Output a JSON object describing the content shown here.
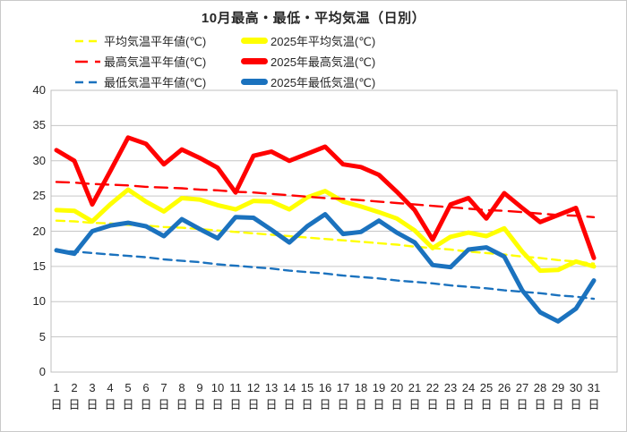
{
  "chart_data": {
    "type": "line",
    "title": "10月最高・最低・平均気温（日別）",
    "x_categories": [
      "1",
      "2",
      "3",
      "4",
      "5",
      "6",
      "7",
      "8",
      "9",
      "10",
      "11",
      "12",
      "13",
      "14",
      "15",
      "16",
      "17",
      "18",
      "19",
      "20",
      "21",
      "22",
      "23",
      "24",
      "25",
      "26",
      "27",
      "28",
      "29",
      "30",
      "31"
    ],
    "x_suffix": "日",
    "ylim": [
      0,
      40
    ],
    "y_ticks": [
      0,
      5,
      10,
      15,
      20,
      25,
      30,
      35,
      40
    ],
    "grid": true,
    "legend_position": "top",
    "colors": {
      "average": "#ffff00",
      "max": "#ff0000",
      "min": "#1b72be",
      "gridline": "#c6c6c6",
      "plot_border": "#bfbfbf",
      "text": "#262626"
    },
    "series": [
      {
        "name": "平均気温平年値(℃)",
        "color": "#ffff00",
        "dash": "short",
        "line": "dashed",
        "values": [
          21.5,
          21.4,
          21.2,
          21.1,
          20.9,
          20.8,
          20.6,
          20.5,
          20.3,
          20.1,
          19.9,
          19.7,
          19.5,
          19.3,
          19.1,
          18.9,
          18.7,
          18.5,
          18.3,
          18.1,
          17.8,
          17.6,
          17.4,
          17.1,
          16.9,
          16.7,
          16.4,
          16.2,
          15.9,
          15.7,
          15.4
        ]
      },
      {
        "name": "2025年平均気温(℃)",
        "color": "#ffff00",
        "dash": "none",
        "line": "solid",
        "values": [
          23.0,
          22.9,
          21.4,
          23.8,
          25.9,
          24.2,
          22.8,
          24.7,
          24.5,
          23.7,
          23.1,
          24.3,
          24.2,
          23.1,
          24.8,
          25.7,
          24.2,
          23.5,
          22.7,
          21.8,
          20.1,
          17.6,
          19.2,
          19.8,
          19.3,
          20.4,
          17.1,
          14.4,
          14.5,
          15.7,
          15.0
        ]
      },
      {
        "name": "最高気温平年値(℃)",
        "color": "#ff0000",
        "dash": "long",
        "line": "dashed",
        "values": [
          27.0,
          26.9,
          26.7,
          26.6,
          26.5,
          26.3,
          26.2,
          26.1,
          25.9,
          25.8,
          25.6,
          25.5,
          25.3,
          25.1,
          24.9,
          24.7,
          24.6,
          24.4,
          24.2,
          24.0,
          23.8,
          23.6,
          23.4,
          23.2,
          23.0,
          22.9,
          22.7,
          22.5,
          22.3,
          22.2,
          22.0
        ]
      },
      {
        "name": "2025年最高気温(℃)",
        "color": "#ff0000",
        "dash": "none",
        "line": "solid",
        "values": [
          31.5,
          30.0,
          23.8,
          28.5,
          33.3,
          32.4,
          29.5,
          31.6,
          30.4,
          29.0,
          25.5,
          30.7,
          31.3,
          30.0,
          31.0,
          32.0,
          29.5,
          29.1,
          28.0,
          25.6,
          23.0,
          18.8,
          23.8,
          24.7,
          21.8,
          25.4,
          23.3,
          21.3,
          22.3,
          23.3,
          16.2
        ]
      },
      {
        "name": "最低気温平年値(℃)",
        "color": "#1b72be",
        "dash": "short",
        "line": "dashed",
        "values": [
          17.2,
          17.1,
          16.9,
          16.7,
          16.5,
          16.3,
          16.0,
          15.8,
          15.6,
          15.3,
          15.1,
          14.9,
          14.7,
          14.4,
          14.2,
          14.0,
          13.7,
          13.5,
          13.3,
          13.0,
          12.8,
          12.6,
          12.3,
          12.1,
          11.9,
          11.6,
          11.4,
          11.2,
          10.9,
          10.7,
          10.4
        ]
      },
      {
        "name": "2025年最低気温(℃)",
        "color": "#1b72be",
        "dash": "none",
        "line": "solid",
        "values": [
          17.3,
          16.8,
          20.0,
          20.8,
          21.2,
          20.7,
          19.3,
          21.7,
          20.3,
          19.0,
          22.0,
          21.9,
          20.2,
          18.4,
          20.7,
          22.4,
          19.6,
          19.9,
          21.5,
          19.8,
          18.4,
          15.2,
          14.9,
          17.4,
          17.7,
          16.4,
          11.6,
          8.5,
          7.2,
          9.0,
          13.0
        ]
      }
    ]
  }
}
